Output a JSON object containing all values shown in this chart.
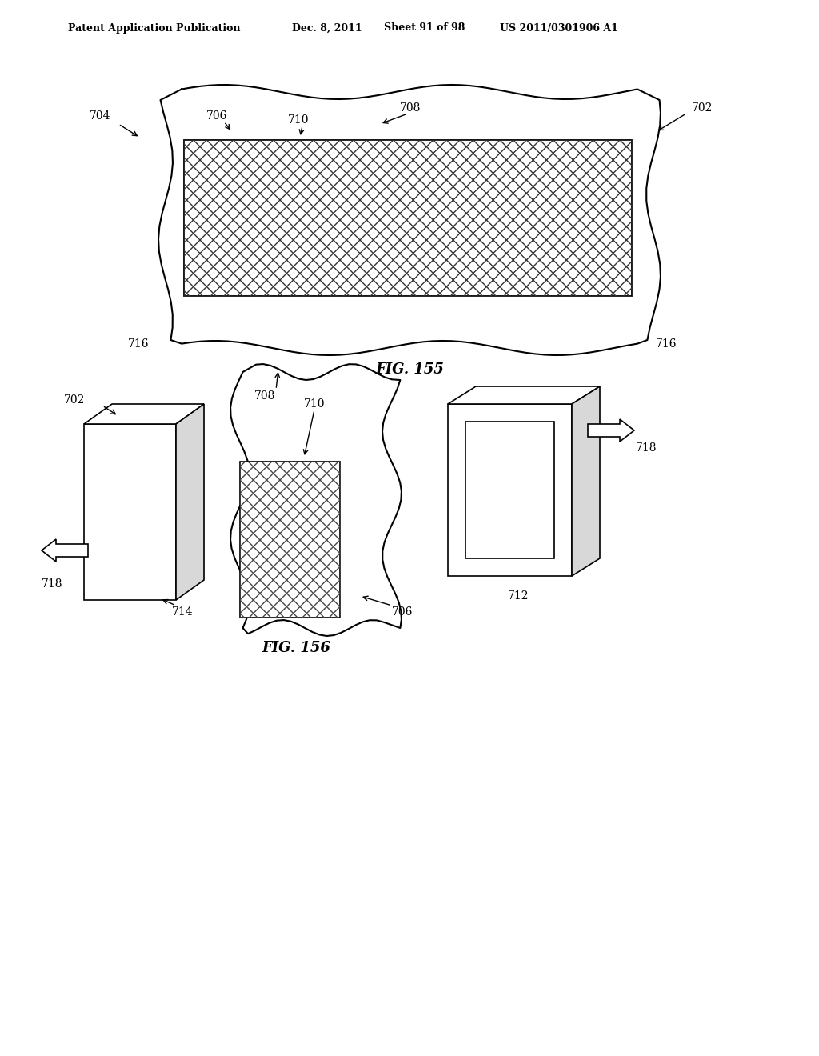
{
  "bg_color": "#ffffff",
  "header_text": "Patent Application Publication",
  "header_date": "Dec. 8, 2011",
  "header_sheet": "Sheet 91 of 98",
  "header_patent": "US 2011/0301906 A1",
  "fig155_caption": "FIG. 155",
  "fig156_caption": "FIG. 156",
  "line_color": "#000000",
  "label_fontsize": 10,
  "caption_fontsize": 13,
  "header_fontsize": 9
}
